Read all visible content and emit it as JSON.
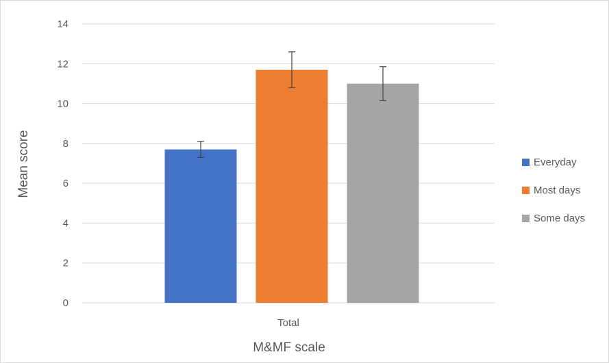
{
  "chart_data": {
    "type": "bar",
    "categories": [
      "Total"
    ],
    "series": [
      {
        "name": "Everyday",
        "values": [
          7.7
        ],
        "error": [
          0.4
        ],
        "color": "#4472C4"
      },
      {
        "name": "Most days",
        "values": [
          11.7
        ],
        "error": [
          0.9
        ],
        "color": "#ED7D31"
      },
      {
        "name": "Some days",
        "values": [
          11.0
        ],
        "error": [
          0.85
        ],
        "color": "#A5A5A5"
      }
    ],
    "title": "",
    "xlabel": "M&MF scale",
    "ylabel": "Mean score",
    "ylim": [
      0,
      14
    ],
    "yticks": [
      0,
      2,
      4,
      6,
      8,
      10,
      12,
      14
    ],
    "grid": true,
    "legend_position": "right",
    "colors": {
      "grid": "#d9d9d9",
      "text": "#595959",
      "error_bar": "#404040"
    }
  }
}
